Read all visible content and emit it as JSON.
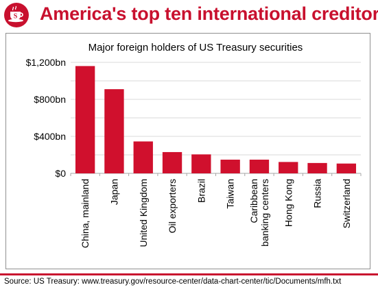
{
  "header": {
    "title": "America's top ten international creditors",
    "logo_icon": "teacup-s-logo-icon"
  },
  "chart_data": {
    "type": "bar",
    "subtitle": "Major foreign holders of US Treasury securities",
    "categories": [
      "China, mainland",
      "Japan",
      "United Kingdom",
      "Oil exporters",
      "Brazil",
      "Taiwan",
      "Caribbean banking centers",
      "Hong Kong",
      "Russia",
      "Switzerland"
    ],
    "category_lines": [
      [
        "China, mainland"
      ],
      [
        "Japan"
      ],
      [
        "United Kingdom"
      ],
      [
        "Oil exporters"
      ],
      [
        "Brazil"
      ],
      [
        "Taiwan"
      ],
      [
        "Caribbean",
        "banking centers"
      ],
      [
        "Hong Kong"
      ],
      [
        "Russia"
      ],
      [
        "Switzerland"
      ]
    ],
    "values": [
      1160,
      910,
      345,
      230,
      205,
      148,
      148,
      123,
      112,
      106
    ],
    "y_ticks": [
      0,
      400,
      800,
      1200
    ],
    "y_tick_labels": [
      "$0",
      "$400bn",
      "$800bn",
      "$1,200bn"
    ],
    "ylim": [
      0,
      1200
    ],
    "grid": true,
    "legend": "none",
    "bar_color": "#d0102d"
  },
  "footer": {
    "source": "Source: US Treasury: www.treasury.gov/resource-center/data-chart-center/tic/Documents/mfh.txt"
  },
  "colors": {
    "accent": "#c8102e",
    "grid": "#d9d9d9"
  }
}
